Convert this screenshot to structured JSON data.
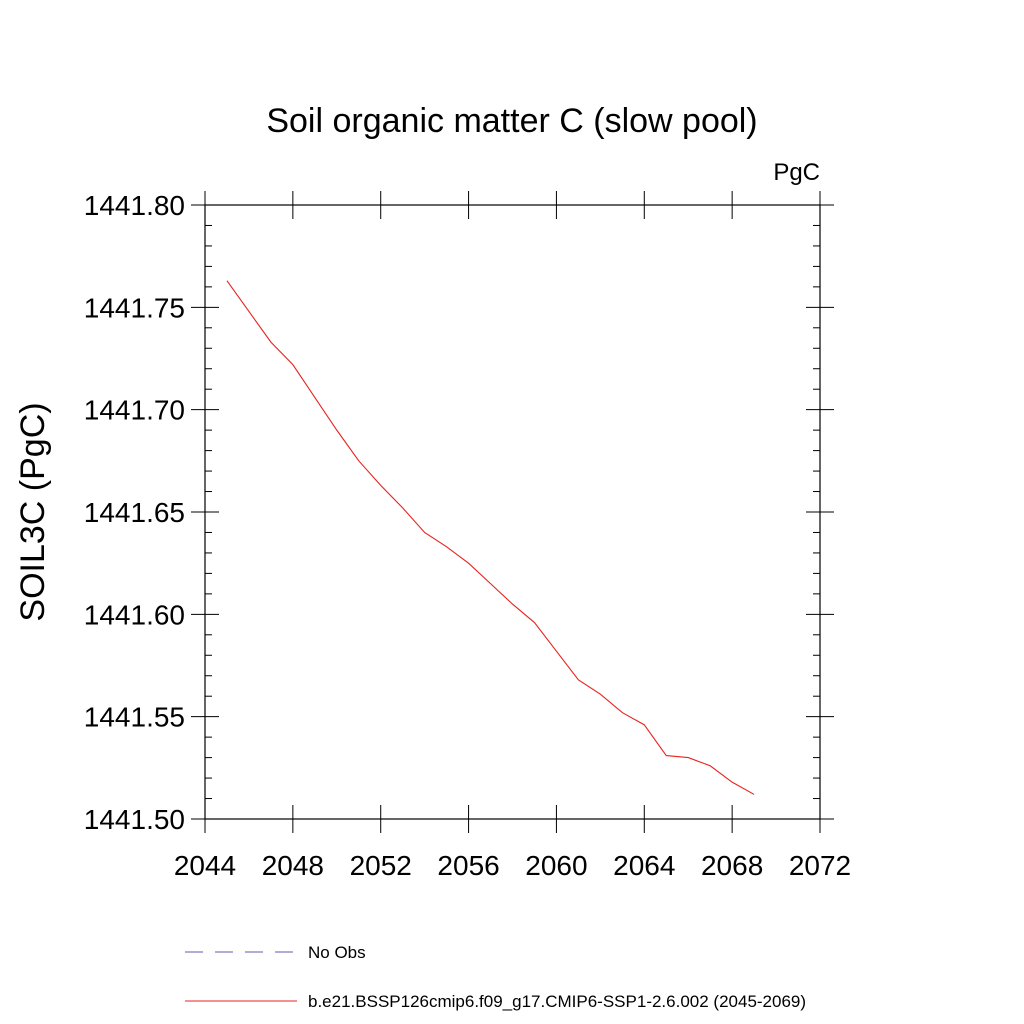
{
  "chart_data": {
    "type": "line",
    "title": "Soil organic matter C (slow pool)",
    "units_label": "PgC",
    "ylabel": "SOIL3C  (PgC)",
    "xlabel": "",
    "xlim": [
      2044,
      2072
    ],
    "ylim": [
      1441.5,
      1441.8
    ],
    "x_ticks": [
      2044,
      2048,
      2052,
      2056,
      2060,
      2064,
      2068,
      2072
    ],
    "x_tick_labels": [
      "2044",
      "2048",
      "2052",
      "2056",
      "2060",
      "2064",
      "2068",
      "2072"
    ],
    "y_ticks": [
      1441.5,
      1441.55,
      1441.6,
      1441.65,
      1441.7,
      1441.75,
      1441.8
    ],
    "y_tick_labels": [
      "1441.50",
      "1441.55",
      "1441.60",
      "1441.65",
      "1441.70",
      "1441.75",
      "1441.80"
    ],
    "grid": false,
    "legend_position": "bottom",
    "series": [
      {
        "name": "No Obs",
        "color": "#5b5bb0",
        "dash": "dashed",
        "x": [],
        "y": []
      },
      {
        "name": "b.e21.BSSP126cmip6.f09_g17.CMIP6-SSP1-2.6.002 (2045-2069)",
        "color": "#e8231f",
        "dash": "solid",
        "x": [
          2045,
          2046,
          2047,
          2048,
          2049,
          2050,
          2051,
          2052,
          2053,
          2054,
          2055,
          2056,
          2057,
          2058,
          2059,
          2060,
          2061,
          2062,
          2063,
          2064,
          2065,
          2066,
          2067,
          2068,
          2069
        ],
        "y": [
          1441.763,
          1441.748,
          1441.733,
          1441.722,
          1441.706,
          1441.69,
          1441.675,
          1441.663,
          1441.652,
          1441.64,
          1441.633,
          1441.625,
          1441.615,
          1441.605,
          1441.596,
          1441.582,
          1441.568,
          1441.561,
          1441.552,
          1441.546,
          1441.531,
          1441.53,
          1441.526,
          1441.518,
          1441.512
        ]
      }
    ]
  }
}
